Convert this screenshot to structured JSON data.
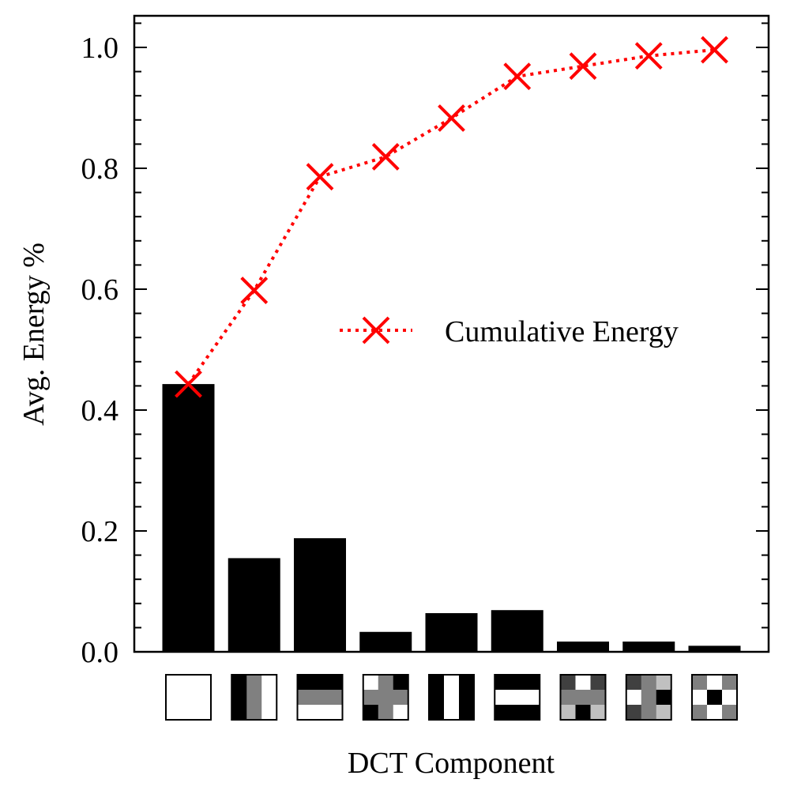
{
  "chart_data": {
    "type": "bar",
    "title": "",
    "xlabel": "DCT Component",
    "ylabel": "Avg. Energy %",
    "ylim": [
      0,
      1.05
    ],
    "yticks": [
      "0.0",
      "0.2",
      "0.4",
      "0.6",
      "0.8",
      "1.0"
    ],
    "ytick_values": [
      0.0,
      0.2,
      0.4,
      0.6,
      0.8,
      1.0
    ],
    "categories": [
      "DC",
      "H1",
      "V1",
      "HV11",
      "H2",
      "V2",
      "HV21",
      "HV12",
      "HV22"
    ],
    "series": [
      {
        "name": "Avg. Energy",
        "kind": "bar",
        "color": "#000000",
        "values": [
          0.443,
          0.155,
          0.188,
          0.033,
          0.064,
          0.069,
          0.017,
          0.017,
          0.01
        ]
      },
      {
        "name": "Cumulative Energy",
        "kind": "line",
        "color": "#ff0000",
        "marker": "x",
        "linestyle": "dotted",
        "values": [
          0.443,
          0.598,
          0.786,
          0.819,
          0.883,
          0.952,
          0.969,
          0.986,
          0.996
        ]
      }
    ],
    "legend": {
      "position": "center-right",
      "entries": [
        "Cumulative Energy"
      ]
    },
    "tick_icons": [
      [
        [
          "#ffffff",
          "#ffffff",
          "#ffffff"
        ],
        [
          "#ffffff",
          "#ffffff",
          "#ffffff"
        ],
        [
          "#ffffff",
          "#ffffff",
          "#ffffff"
        ]
      ],
      [
        [
          "#000000",
          "#808080",
          "#ffffff"
        ],
        [
          "#000000",
          "#808080",
          "#ffffff"
        ],
        [
          "#000000",
          "#808080",
          "#ffffff"
        ]
      ],
      [
        [
          "#000000",
          "#000000",
          "#000000"
        ],
        [
          "#808080",
          "#808080",
          "#808080"
        ],
        [
          "#ffffff",
          "#ffffff",
          "#ffffff"
        ]
      ],
      [
        [
          "#ffffff",
          "#808080",
          "#000000"
        ],
        [
          "#808080",
          "#808080",
          "#808080"
        ],
        [
          "#000000",
          "#808080",
          "#ffffff"
        ]
      ],
      [
        [
          "#000000",
          "#ffffff",
          "#000000"
        ],
        [
          "#000000",
          "#ffffff",
          "#000000"
        ],
        [
          "#000000",
          "#ffffff",
          "#000000"
        ]
      ],
      [
        [
          "#000000",
          "#000000",
          "#000000"
        ],
        [
          "#ffffff",
          "#ffffff",
          "#ffffff"
        ],
        [
          "#000000",
          "#000000",
          "#000000"
        ]
      ],
      [
        [
          "#404040",
          "#ffffff",
          "#404040"
        ],
        [
          "#808080",
          "#808080",
          "#808080"
        ],
        [
          "#c0c0c0",
          "#000000",
          "#c0c0c0"
        ]
      ],
      [
        [
          "#404040",
          "#808080",
          "#c0c0c0"
        ],
        [
          "#ffffff",
          "#808080",
          "#000000"
        ],
        [
          "#404040",
          "#808080",
          "#c0c0c0"
        ]
      ],
      [
        [
          "#808080",
          "#ffffff",
          "#808080"
        ],
        [
          "#ffffff",
          "#000000",
          "#ffffff"
        ],
        [
          "#808080",
          "#ffffff",
          "#808080"
        ]
      ]
    ]
  }
}
